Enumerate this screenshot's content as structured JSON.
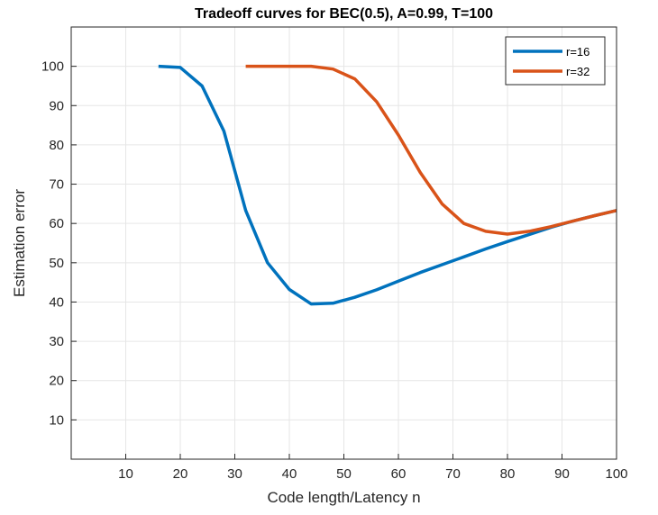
{
  "chart_data": {
    "type": "line",
    "title": "Tradeoff curves for BEC(0.5), A=0.99, T=100",
    "xlabel": "Code length/Latency n",
    "ylabel": "Estimation error",
    "xlim": [
      0,
      100
    ],
    "ylim": [
      0,
      110
    ],
    "xticks": [
      10,
      20,
      30,
      40,
      50,
      60,
      70,
      80,
      90,
      100
    ],
    "yticks": [
      10,
      20,
      30,
      40,
      50,
      60,
      70,
      80,
      90,
      100
    ],
    "grid": true,
    "legend_position": "top-right",
    "series": [
      {
        "name": "r=16",
        "color": "#0072BD",
        "x": [
          16,
          20,
          24,
          28,
          32,
          36,
          40,
          44,
          48,
          52,
          56,
          60,
          64,
          68,
          72,
          76,
          80,
          84,
          88,
          92,
          96,
          100
        ],
        "y": [
          100,
          99.7,
          95,
          83.5,
          63.3,
          50,
          43.2,
          39.5,
          39.7,
          41.2,
          43.1,
          45.3,
          47.5,
          49.5,
          51.5,
          53.5,
          55.4,
          57.2,
          59,
          60.6,
          62,
          63.3
        ]
      },
      {
        "name": "r=32",
        "color": "#D95319",
        "x": [
          32,
          36,
          40,
          44,
          48,
          52,
          56,
          60,
          64,
          68,
          72,
          76,
          80,
          84,
          88,
          92,
          96,
          100
        ],
        "y": [
          100,
          100,
          100,
          100,
          99.3,
          96.8,
          91,
          82.5,
          73,
          65,
          60,
          58,
          57.3,
          58,
          59.2,
          60.6,
          62,
          63.3
        ]
      }
    ]
  }
}
